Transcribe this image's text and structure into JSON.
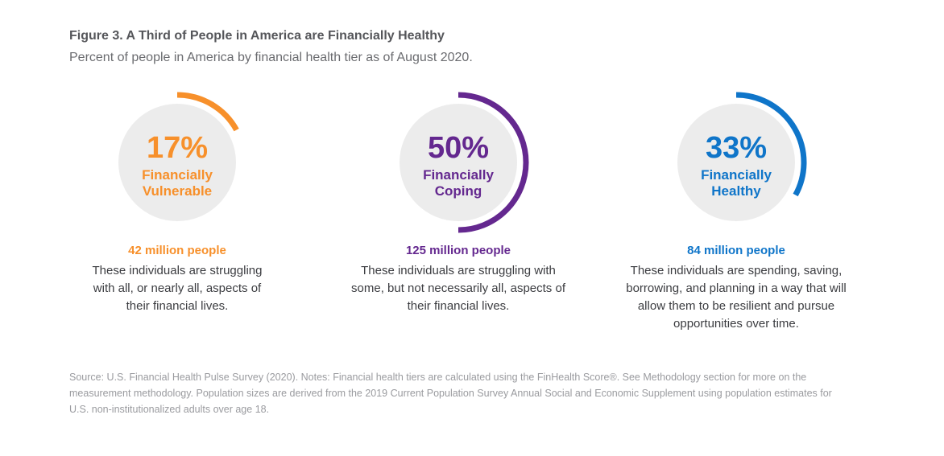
{
  "chart_data": {
    "type": "pie",
    "title": "Figure 3. A Third of People in America are Financially Healthy",
    "subtitle": "Percent of people in America by financial health tier as of August 2020.",
    "tiers": [
      {
        "pct_value": 17,
        "pct_label": "17%",
        "label_line1": "Financially",
        "label_line2": "Vulnerable",
        "people": "42 million people",
        "description": "These individuals are struggling with all, or nearly all, aspects of their financial lives.",
        "color": "#f7902b"
      },
      {
        "pct_value": 50,
        "pct_label": "50%",
        "label_line1": "Financially",
        "label_line2": "Coping",
        "people": "125 million people",
        "description": "These individuals are struggling with some, but not necessarily all, aspects of their financial lives.",
        "color": "#64288f"
      },
      {
        "pct_value": 33,
        "pct_label": "33%",
        "label_line1": "Financially",
        "label_line2": "Healthy",
        "people": "84 million people",
        "description": "These individuals are spending, saving, borrowing, and planning in a way that will allow them to be resilient and pursue opportunities over time.",
        "color": "#0f75c9"
      }
    ],
    "circle_color": "#ececec",
    "source": "Source: U.S. Financial Health Pulse Survey (2020). Notes: Financial health tiers are calculated using the FinHealth Score®. See Methodology section for more on the measurement methodology. Population sizes are derived from the 2019 Current Population Survey Annual Social and Economic Supplement using population estimates for U.S. non-institutionalized adults over age 18."
  }
}
